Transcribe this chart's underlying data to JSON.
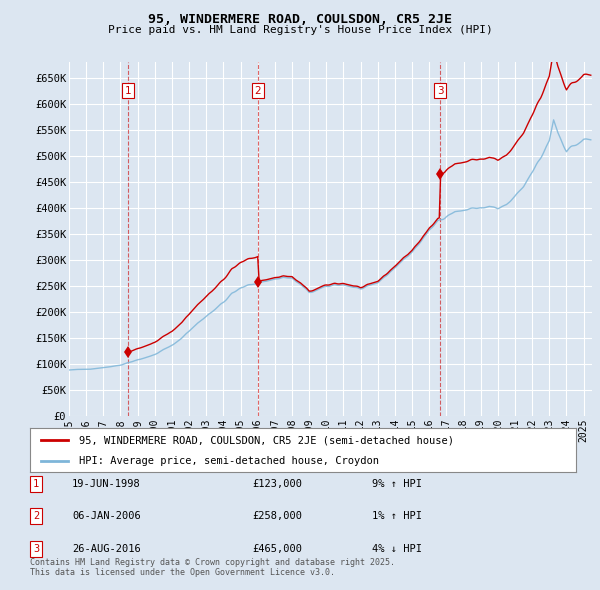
{
  "title": "95, WINDERMERE ROAD, COULSDON, CR5 2JE",
  "subtitle": "Price paid vs. HM Land Registry's House Price Index (HPI)",
  "ylim": [
    0,
    680000
  ],
  "yticks": [
    0,
    50000,
    100000,
    150000,
    200000,
    250000,
    300000,
    350000,
    400000,
    450000,
    500000,
    550000,
    600000,
    650000
  ],
  "ytick_labels": [
    "£0",
    "£50K",
    "£100K",
    "£150K",
    "£200K",
    "£250K",
    "£300K",
    "£350K",
    "£400K",
    "£450K",
    "£500K",
    "£550K",
    "£600K",
    "£650K"
  ],
  "xlim_start": 1995.0,
  "xlim_end": 2025.5,
  "background_color": "#dce6f1",
  "plot_bg_color": "#dce6f1",
  "grid_color": "#ffffff",
  "sale_color": "#cc0000",
  "hpi_color": "#7eb6d9",
  "sales": [
    {
      "label": "1",
      "date_str": "19-JUN-1998",
      "year": 1998.46,
      "price": 123000
    },
    {
      "label": "2",
      "date_str": "06-JAN-2006",
      "year": 2006.01,
      "price": 258000
    },
    {
      "label": "3",
      "date_str": "26-AUG-2016",
      "year": 2016.65,
      "price": 465000
    }
  ],
  "table_rows": [
    {
      "num": "1",
      "date": "19-JUN-1998",
      "price": "£123,000",
      "hpi": "9% ↑ HPI"
    },
    {
      "num": "2",
      "date": "06-JAN-2006",
      "price": "£258,000",
      "hpi": "1% ↑ HPI"
    },
    {
      "num": "3",
      "date": "26-AUG-2016",
      "price": "£465,000",
      "hpi": "4% ↓ HPI"
    }
  ],
  "legend_line1": "95, WINDERMERE ROAD, COULSDON, CR5 2JE (semi-detached house)",
  "legend_line2": "HPI: Average price, semi-detached house, Croydon",
  "footer": "Contains HM Land Registry data © Crown copyright and database right 2025.\nThis data is licensed under the Open Government Licence v3.0."
}
